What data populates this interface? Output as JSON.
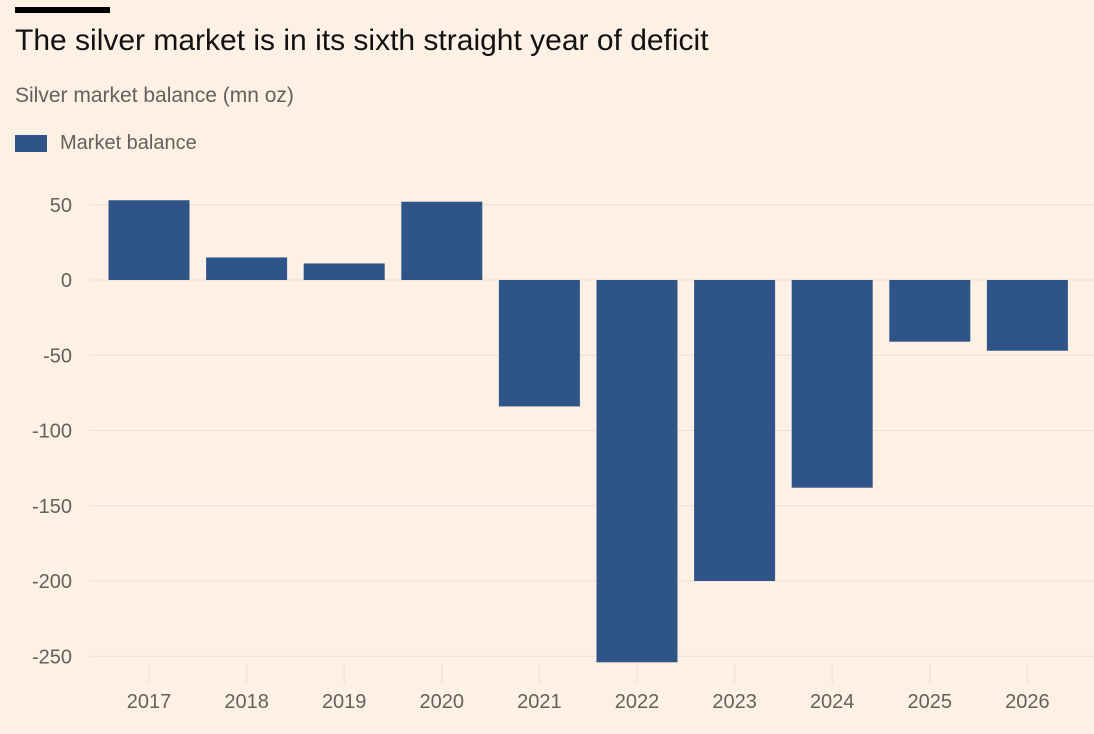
{
  "header": {
    "title": "The silver market is in its sixth straight year of deficit",
    "subtitle": "Silver market balance (mn oz)"
  },
  "legend": {
    "items": [
      {
        "label": "Market balance",
        "color": "#2e5488"
      }
    ]
  },
  "chart_data": {
    "type": "bar",
    "title": "The silver market is in its sixth straight year of deficit",
    "subtitle": "Silver market balance (mn oz)",
    "xlabel": "",
    "ylabel": "Silver market balance (mn oz)",
    "categories": [
      "2017",
      "2018",
      "2019",
      "2020",
      "2021",
      "2022",
      "2023",
      "2024",
      "2025",
      "2026"
    ],
    "series": [
      {
        "name": "Market balance",
        "color": "#2e5488",
        "values": [
          53,
          15,
          11,
          52,
          -84,
          -254,
          -200,
          -138,
          -41,
          -47
        ]
      }
    ],
    "ylim": [
      -260,
      55
    ],
    "yticks": [
      50,
      0,
      -50,
      -100,
      -150,
      -200,
      -250
    ],
    "grid": true,
    "legend_position": "top-left",
    "colors": {
      "background": "#fdf0e5",
      "bar": "#2e5488",
      "grid": "#eadfd6",
      "text": "#66605c"
    }
  }
}
